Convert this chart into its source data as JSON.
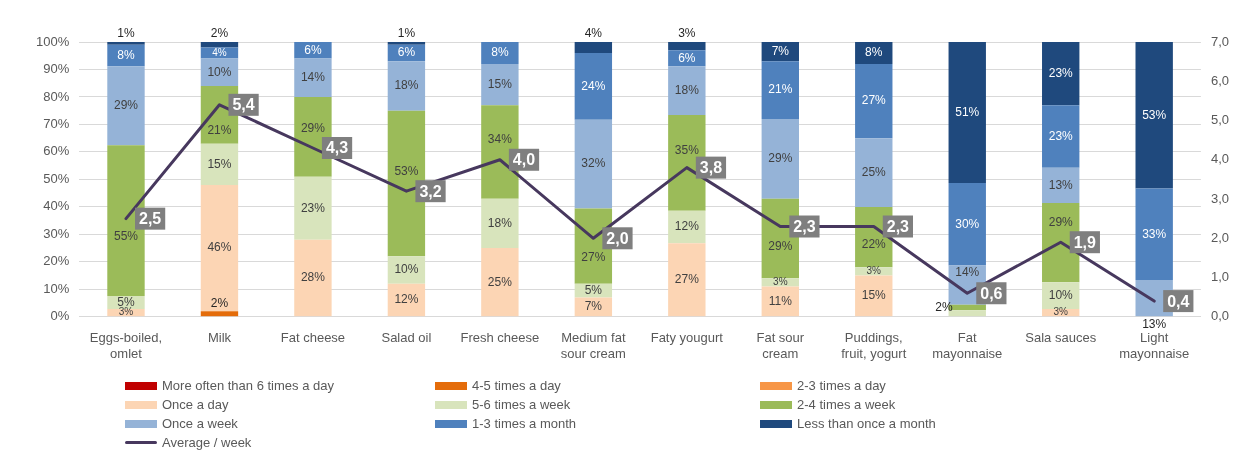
{
  "chart_data": {
    "type": "bar",
    "stacked": true,
    "categories": [
      "Eggs-boiled, omlet",
      "Milk",
      "Fat cheese",
      "Salad oil",
      "Fresh cheese",
      "Medium fat sour cream",
      "Faty yougurt",
      "Fat sour cream",
      "Puddings, fruit, yogurt",
      "Fat mayonnaise",
      "Sala sauces",
      "Light mayonnaise"
    ],
    "ylim": [
      0,
      100
    ],
    "yticks": [
      {
        "value": 0,
        "label": "0%"
      },
      {
        "value": 10,
        "label": "10%"
      },
      {
        "value": 20,
        "label": "20%"
      },
      {
        "value": 30,
        "label": "30%"
      },
      {
        "value": 40,
        "label": "40%"
      },
      {
        "value": 50,
        "label": "50%"
      },
      {
        "value": 60,
        "label": "60%"
      },
      {
        "value": 70,
        "label": "70%"
      },
      {
        "value": 80,
        "label": "80%"
      },
      {
        "value": 90,
        "label": "90%"
      },
      {
        "value": 100,
        "label": "100%"
      }
    ],
    "y2lim": [
      0,
      7
    ],
    "y2ticks": [
      {
        "value": 0,
        "label": "0,0"
      },
      {
        "value": 1,
        "label": "1,0"
      },
      {
        "value": 2,
        "label": "2,0"
      },
      {
        "value": 3,
        "label": "3,0"
      },
      {
        "value": 4,
        "label": "4,0"
      },
      {
        "value": 5,
        "label": "5,0"
      },
      {
        "value": 6,
        "label": "6,0"
      },
      {
        "value": 7,
        "label": "7,0"
      }
    ],
    "grid": "y",
    "legend": "bottom",
    "series": [
      {
        "name": "More often than 6 times a day",
        "color": "#c00000",
        "values": [
          0,
          0,
          0,
          0,
          0,
          0,
          0,
          0,
          0,
          0,
          0,
          0
        ],
        "value_labels": [
          null,
          null,
          null,
          null,
          null,
          null,
          null,
          null,
          null,
          null,
          null,
          null
        ]
      },
      {
        "name": "4-5 times a day",
        "color": "#e46c0a",
        "values": [
          0,
          2,
          0,
          0,
          0,
          0,
          0,
          0,
          0,
          0,
          0,
          0
        ],
        "value_labels": [
          null,
          "2%",
          null,
          null,
          null,
          null,
          null,
          null,
          null,
          null,
          null,
          null
        ]
      },
      {
        "name": "2-3 times a day",
        "color": "#f79646",
        "values": [
          0,
          0,
          0,
          0,
          0,
          0,
          0,
          0,
          0,
          0,
          0,
          0
        ],
        "value_labels": [
          null,
          null,
          null,
          null,
          null,
          null,
          null,
          null,
          null,
          null,
          null,
          null
        ]
      },
      {
        "name": "Once a day",
        "color": "#fcd5b4",
        "values": [
          2.8,
          46,
          28,
          12,
          25,
          7,
          26.8,
          11,
          15,
          0,
          2.8,
          0
        ],
        "value_labels": [
          "3%",
          "46%",
          "28%",
          "12%",
          "25%",
          "7%",
          "27%",
          "11%",
          "15%",
          null,
          "3%",
          null
        ]
      },
      {
        "name": "5-6 times a week",
        "color": "#d8e4bc",
        "values": [
          4.8,
          15,
          23,
          10,
          18,
          5,
          11.8,
          3,
          3,
          2.4,
          9.8,
          0
        ],
        "value_labels": [
          "5%",
          "15%",
          "23%",
          "10%",
          "18%",
          "5%",
          "12%",
          "3%",
          "3%",
          null,
          "10%",
          null
        ]
      },
      {
        "name": "2-4 times a week",
        "color": "#9bbb59",
        "values": [
          54.8,
          21,
          29,
          53,
          34,
          27.4,
          34.8,
          29,
          22,
          2,
          28.8,
          0
        ],
        "value_labels": [
          "55%",
          "21%",
          "29%",
          "53%",
          "34%",
          "27%",
          "35%",
          "29%",
          "22%",
          "2%",
          "29%",
          null
        ]
      },
      {
        "name": "Once a week",
        "color": "#95b3d7",
        "values": [
          28.8,
          10,
          14,
          18,
          15,
          32.3,
          17.8,
          29,
          25,
          14.3,
          12.8,
          13.4
        ],
        "value_labels": [
          "29%",
          "10%",
          "14%",
          "18%",
          "15%",
          "32%",
          "18%",
          "29%",
          "25%",
          "14%",
          "13%",
          "13%"
        ]
      },
      {
        "name": "1-3 times a month",
        "color": "#4f81bd",
        "values": [
          7.8,
          4,
          6,
          6,
          8,
          24.3,
          5.8,
          21,
          27,
          30,
          22.8,
          33.3
        ],
        "value_labels": [
          "8%",
          "4%",
          "6%",
          "6%",
          "8%",
          "24%",
          "6%",
          "21%",
          "27%",
          "30%",
          "23%",
          "33%"
        ]
      },
      {
        "name": "Less than once a month",
        "color": "#1f497d",
        "values": [
          1,
          2,
          0,
          1,
          0,
          4,
          3,
          7,
          8,
          51.3,
          23,
          53.3
        ],
        "value_labels": [
          "1%",
          "2%",
          null,
          "1%",
          null,
          "4%",
          "3%",
          "7%",
          "8%",
          "51%",
          "23%",
          "53%"
        ]
      },
      {
        "name": "Average / week",
        "type": "line",
        "axis": "y2",
        "color": "#47385e",
        "values": [
          2.5,
          5.4,
          4.3,
          3.2,
          4.0,
          2.0,
          3.8,
          2.3,
          2.3,
          0.6,
          1.9,
          0.4
        ],
        "value_labels": [
          "2,5",
          "5,4",
          "4,3",
          "3,2",
          "4,0",
          "2,0",
          "3,8",
          "2,3",
          "2,3",
          "0,6",
          "1,9",
          "0,4"
        ]
      }
    ]
  }
}
